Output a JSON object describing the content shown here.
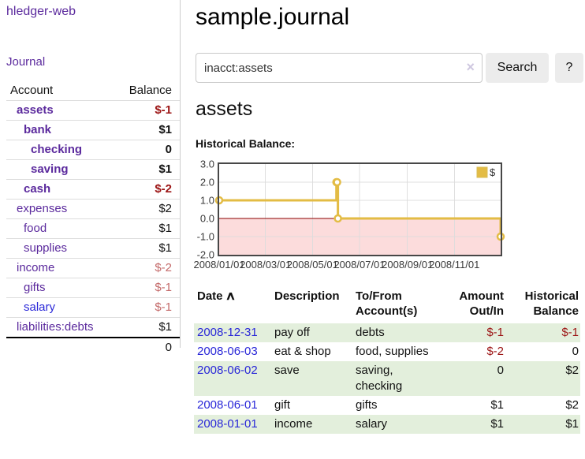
{
  "sidebar": {
    "brand": "hledger-web",
    "journal_link": "Journal",
    "accounts_table": {
      "headers": {
        "account": "Account",
        "balance": "Balance"
      },
      "rows": [
        {
          "name": "assets",
          "balance": "$-1"
        },
        {
          "name": "bank",
          "balance": "$1"
        },
        {
          "name": "checking",
          "balance": "0"
        },
        {
          "name": "saving",
          "balance": "$1"
        },
        {
          "name": "cash",
          "balance": "$-2"
        },
        {
          "name": "expenses",
          "balance": "$2"
        },
        {
          "name": "food",
          "balance": "$1"
        },
        {
          "name": "supplies",
          "balance": "$1"
        },
        {
          "name": "income",
          "balance": "$-2"
        },
        {
          "name": "gifts",
          "balance": "$-1"
        },
        {
          "name": "salary",
          "balance": "$-1"
        },
        {
          "name": "liabilities:debts",
          "balance": "$1"
        }
      ],
      "total": "0"
    }
  },
  "header": {
    "title": "sample.journal"
  },
  "search": {
    "query": "inacct:assets",
    "clear_icon": "×",
    "search_label": "Search",
    "help_label": "?"
  },
  "account_page": {
    "title": "assets",
    "chart_label": "Historical Balance:"
  },
  "chart_data": {
    "type": "line",
    "title": "Historical Balance",
    "step": true,
    "series": [
      {
        "name": "$",
        "color": "#e3bc45",
        "points": [
          [
            "2008-01-01",
            1
          ],
          [
            "2008-06-01",
            2
          ],
          [
            "2008-06-02",
            2
          ],
          [
            "2008-06-03",
            0
          ],
          [
            "2008-12-31",
            -1
          ]
        ]
      }
    ],
    "xlim": [
      "2008-01-01",
      "2008-12-31"
    ],
    "ylim": [
      -2,
      3
    ],
    "x_ticks": [
      "2008/01/01",
      "2008/03/01",
      "2008/05/01",
      "2008/07/01",
      "2008/09/01",
      "2008/11/01"
    ],
    "y_tick_labels": [
      "3.0",
      "2.0",
      "1.0",
      "0.0",
      "-1.0",
      "-2.0"
    ],
    "y_ticks": [
      3,
      2,
      1,
      0,
      -1,
      -2
    ],
    "grid": true,
    "legend_position": "top-right",
    "border_color": "#474747",
    "grid_color": "#dcdcdc",
    "negative_region_fill": "#fcdcdc",
    "zero_line_color": "#8b0000",
    "tick_label_color": "#3a3a3a"
  },
  "register_table": {
    "headers": {
      "date": "Date",
      "sort_icon": "∧",
      "description": "Description",
      "accounts": "To/From Account(s)",
      "amount": "Amount Out/In",
      "balance": "Historical Balance"
    },
    "rows": [
      {
        "date": "2008-12-31",
        "description": "pay off",
        "accounts": "debts",
        "amount": "$-1",
        "balance": "$-1"
      },
      {
        "date": "2008-06-03",
        "description": "eat & shop",
        "accounts": "food, supplies",
        "amount": "$-2",
        "balance": "0"
      },
      {
        "date": "2008-06-02",
        "description": "save",
        "accounts": "saving, checking",
        "amount": "0",
        "balance": "$2"
      },
      {
        "date": "2008-06-01",
        "description": "gift",
        "accounts": "gifts",
        "amount": "$1",
        "balance": "$2"
      },
      {
        "date": "2008-01-01",
        "description": "income",
        "accounts": "salary",
        "amount": "$1",
        "balance": "$1"
      }
    ]
  }
}
